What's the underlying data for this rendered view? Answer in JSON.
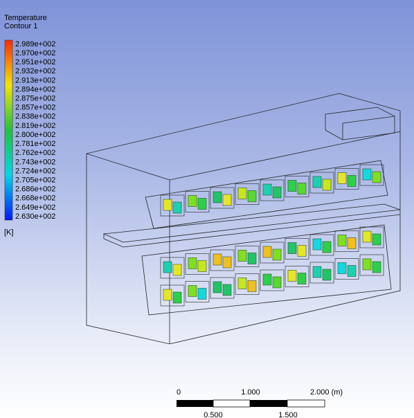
{
  "legend": {
    "title": "Temperature",
    "subtitle": "Contour 1",
    "labels": [
      "2.989e+002",
      "2.970e+002",
      "2.951e+002",
      "2.932e+002",
      "2.913e+002",
      "2.894e+002",
      "2.875e+002",
      "2.857e+002",
      "2.838e+002",
      "2.819e+002",
      "2.800e+002",
      "2.781e+002",
      "2.762e+002",
      "2.743e+002",
      "2.724e+002",
      "2.705e+002",
      "2.686e+002",
      "2.668e+002",
      "2.649e+002",
      "2.630e+002"
    ],
    "unit": "[K]"
  },
  "scale_bar": {
    "top_labels": [
      "0",
      "1.000",
      "2.000 (m)"
    ],
    "bottom_labels": [
      "0.500",
      "1.500"
    ]
  }
}
